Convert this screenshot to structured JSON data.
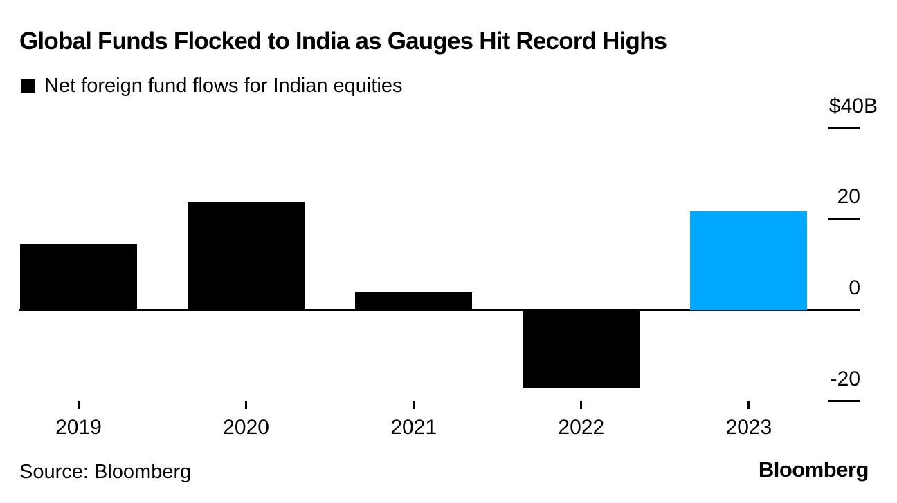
{
  "title": "Global Funds Flocked to India as Gauges Hit Record Highs",
  "legend": {
    "label": "Net foreign fund flows for Indian equities",
    "swatch_color": "#000000"
  },
  "footer": {
    "source": "Source: Bloomberg",
    "brand": "Bloomberg"
  },
  "colors": {
    "bar": "#000000",
    "highlight": "#00a9ff",
    "axis": "#000000"
  },
  "chart_data": {
    "type": "bar",
    "title": "Global Funds Flocked to India as Gauges Hit Record Highs",
    "series_label": "Net foreign fund flows for Indian equities",
    "categories": [
      "2019",
      "2020",
      "2021",
      "2022",
      "2023"
    ],
    "values": [
      14.6,
      23.7,
      4.0,
      -17.0,
      21.7
    ],
    "unit": "$B",
    "highlight_category": "2023",
    "xlabel": "",
    "ylabel": "",
    "ylim": [
      -20,
      40
    ],
    "y_axis_side": "right",
    "y_ticks": [
      {
        "label": "$40B",
        "value": 40
      },
      {
        "label": "20",
        "value": 20
      },
      {
        "label": "0",
        "value": 0
      },
      {
        "label": "-20",
        "value": -20
      }
    ],
    "grid": false,
    "legend_position": "top-left"
  }
}
